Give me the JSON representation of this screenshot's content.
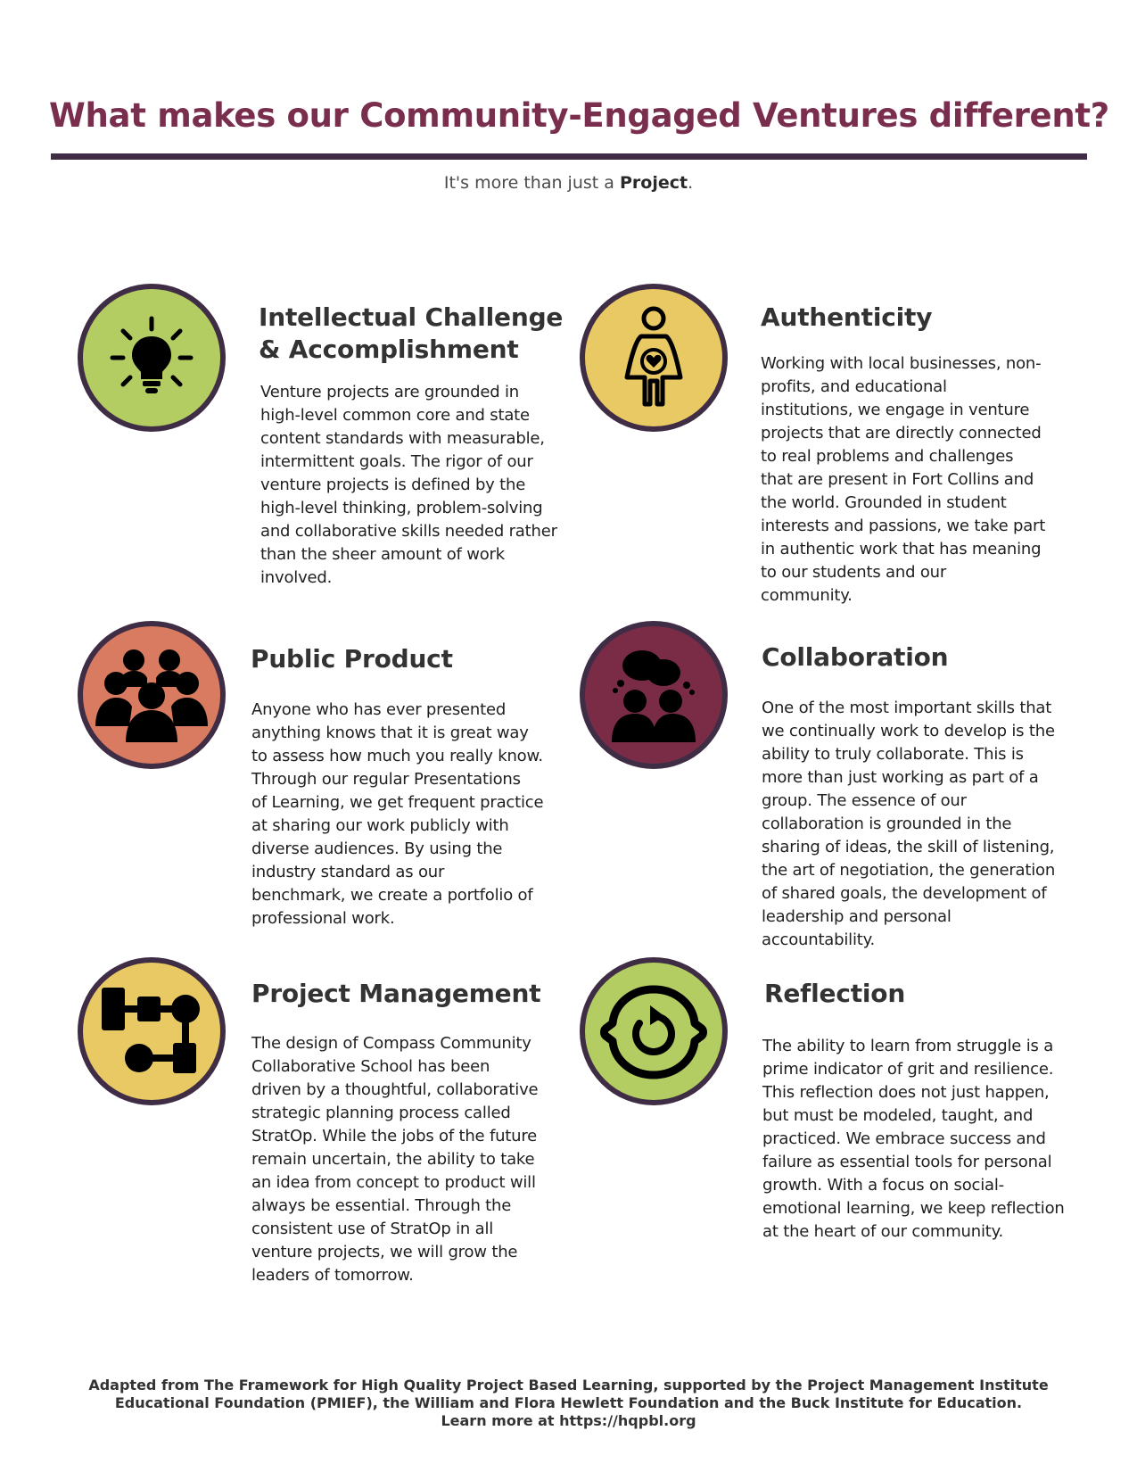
{
  "header": {
    "title": "What makes our Community-Engaged Ventures different?",
    "subtitle_prefix": "It's more than just a ",
    "subtitle_bold": "Project",
    "subtitle_suffix": "."
  },
  "colors": {
    "title": "#7a2e4e",
    "rule": "#3e2d45",
    "green": "#b3cd63",
    "yellow": "#e9c964",
    "coral": "#d87b61",
    "plum": "#7a2c47"
  },
  "sections": [
    {
      "icon": "lightbulb-icon",
      "heading": "Intellectual Challenge\n& Accomplishment",
      "body": "Venture projects are grounded in\nhigh-level common core and state\ncontent standards with measurable,\nintermittent goals.  The rigor of our\nventure projects is defined by the\nhigh-level thinking, problem-solving\nand collaborative skills needed rather\nthan the sheer amount of work\ninvolved."
    },
    {
      "icon": "person-heart-icon",
      "heading": "Authenticity",
      "body": "Working with local businesses, non-\nprofits, and educational\ninstitutions, we engage in venture\nprojects that are directly connected\nto real problems and challenges\nthat are present in Fort Collins and\nthe world.  Grounded in student\ninterests and passions, we take part\nin authentic work that has meaning\nto our students and our\ncommunity."
    },
    {
      "icon": "group-icon",
      "heading": "Public Product",
      "body": "Anyone who has ever presented\nanything knows that it is great way\nto assess how much you really know.\nThrough our regular Presentations\nof Learning, we get frequent practice\nat sharing our work publicly with\ndiverse audiences.  By using the\nindustry standard as our\nbenchmark, we create a portfolio of\nprofessional work."
    },
    {
      "icon": "conversation-icon",
      "heading": "Collaboration",
      "body": "One of the most important skills that\nwe continually work to develop is the\nability to truly collaborate.  This is\nmore than just working as part of a\ngroup.  The essence of our\ncollaboration is grounded in the\nsharing of ideas, the skill of listening,\nthe art of negotiation, the generation\nof shared goals, the development of\nleadership and personal\naccountability."
    },
    {
      "icon": "flowchart-icon",
      "heading": "Project Management",
      "body": "The design of Compass Community\nCollaborative School has been\ndriven by a thoughtful, collaborative\nstrategic planning process called\nStratOp. While the jobs of the future\nremain uncertain, the ability to take\nan idea from concept to product will\nalways be essential.  Through the\nconsistent use of StratOp in all\nventure projects, we will grow the\nleaders of tomorrow."
    },
    {
      "icon": "head-refresh-icon",
      "heading": "Reflection",
      "body": "The ability to learn from struggle is a\nprime indicator of grit and resilience.\nThis reflection does not just happen,\nbut must be modeled, taught, and\npracticed.  We embrace success and\nfailure as essential tools for personal\ngrowth.  With a focus on social-\nemotional learning, we keep reflection\nat the heart of our community."
    }
  ],
  "footer": "Adapted from The Framework for High Quality Project Based Learning, supported by the Project Management Institute\nEducational Foundation (PMIEF), the William and Flora Hewlett Foundation and the Buck Institute for Education.\nLearn more at https://hqpbl.org"
}
